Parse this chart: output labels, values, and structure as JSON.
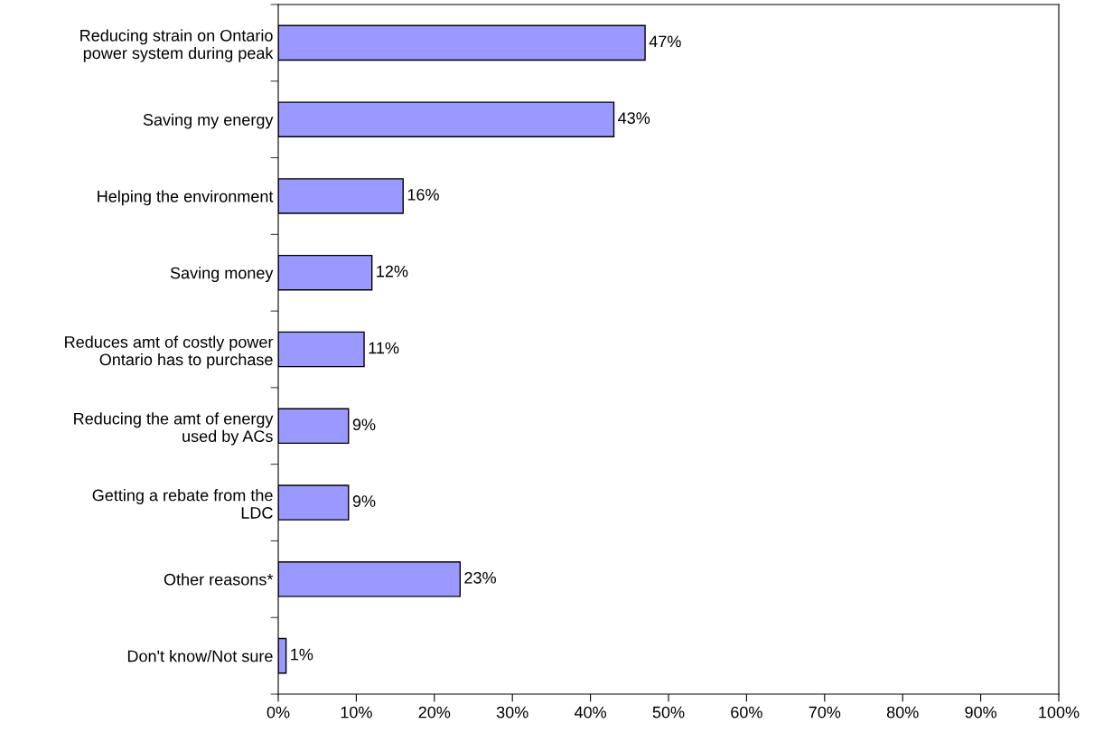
{
  "chart_data": {
    "type": "bar",
    "orientation": "horizontal",
    "categories": [
      "Reducing strain on Ontario\npower system during peak",
      "Saving my energy",
      "Helping the environment",
      "Saving money",
      "Reduces amt of costly power\nOntario has to purchase",
      "Reducing the amt of energy\nused by ACs",
      "Getting a rebate from the\nLDC",
      "Other reasons*",
      "Don't know/Not sure"
    ],
    "values": [
      47,
      43,
      16,
      12,
      11,
      9,
      9,
      23.3,
      1
    ],
    "value_labels": [
      "47%",
      "43%",
      "16%",
      "12%",
      "11%",
      "9%",
      "9%",
      "23%",
      "1%"
    ],
    "color": "#9999ff",
    "xlim": [
      0,
      100
    ],
    "xticks": [
      {
        "value": 0,
        "label": "0%"
      },
      {
        "value": 10,
        "label": "10%"
      },
      {
        "value": 20,
        "label": "20%"
      },
      {
        "value": 30,
        "label": "30%"
      },
      {
        "value": 40,
        "label": "40%"
      },
      {
        "value": 50,
        "label": "50%"
      },
      {
        "value": 60,
        "label": "60%"
      },
      {
        "value": 70,
        "label": "70%"
      },
      {
        "value": 80,
        "label": "80%"
      },
      {
        "value": 90,
        "label": "90%"
      },
      {
        "value": 100,
        "label": "100%"
      }
    ],
    "grid": false
  }
}
